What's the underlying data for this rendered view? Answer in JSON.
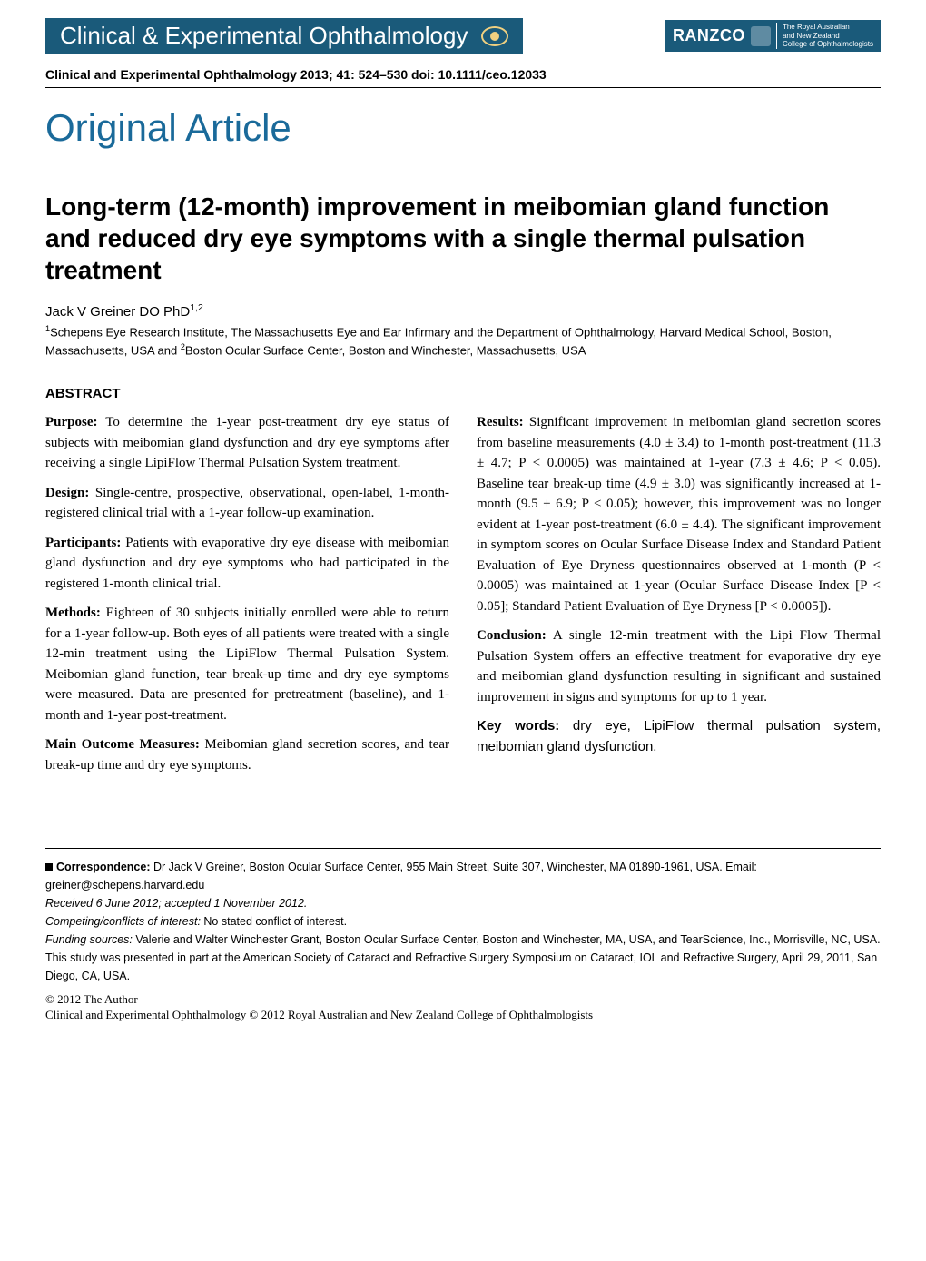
{
  "header": {
    "journal_banner": "Clinical & Experimental Ophthalmology",
    "ranzco_name": "RANZCO",
    "ranzco_line1": "The Royal Australian",
    "ranzco_line2": "and New Zealand",
    "ranzco_line3": "College of Ophthalmologists",
    "citation": "Clinical and Experimental Ophthalmology 2013; 41: 524–530 doi: 10.1111/ceo.12033"
  },
  "article_type": "Original Article",
  "title": "Long-term (12-month) improvement in meibomian gland function and reduced dry eye symptoms with a single thermal pulsation treatment",
  "author": "Jack V Greiner DO PhD",
  "author_sup": "1,2",
  "affiliation_pre": "1",
  "affiliation_text1": "Schepens Eye Research Institute, The Massachusetts Eye and Ear Infirmary and the Department of Ophthalmology, Harvard Medical School, Boston, Massachusetts, USA and ",
  "affiliation_sup2": "2",
  "affiliation_text2": "Boston Ocular Surface Center, Boston and Winchester, Massachusetts, USA",
  "abstract_heading": "Abstract",
  "abstract": {
    "purpose_label": "Purpose:",
    "purpose_text": " To determine the 1-year post-treatment dry eye status of subjects with meibomian gland dysfunction and dry eye symptoms after receiving a single LipiFlow Thermal Pulsation System treatment.",
    "design_label": "Design:",
    "design_text": " Single-centre, prospective, observational, open-label, 1-month-registered clinical trial with a 1-year follow-up examination.",
    "participants_label": "Participants:",
    "participants_text": " Patients with evaporative dry eye disease with meibomian gland dysfunction and dry eye symptoms who had participated in the registered 1-month clinical trial.",
    "methods_label": "Methods:",
    "methods_text": " Eighteen of 30 subjects initially enrolled were able to return for a 1-year follow-up. Both eyes of all patients were treated with a single 12-min treatment using the LipiFlow Thermal Pulsation System. Meibomian gland function, tear break-up time and dry eye symptoms were measured. Data are presented for pretreatment (baseline), and 1-month and 1-year post-treatment.",
    "outcomes_label": "Main Outcome Measures:",
    "outcomes_text": " Meibomian gland secretion scores, and tear break-up time and dry eye symptoms.",
    "results_label": "Results:",
    "results_text": " Significant improvement in meibomian gland secretion scores from baseline measurements (4.0 ± 3.4) to 1-month post-treatment (11.3 ± 4.7; P < 0.0005) was maintained at 1-year (7.3 ± 4.6; P < 0.05). Baseline tear break-up time (4.9 ± 3.0) was significantly increased at 1-month (9.5 ± 6.9; P < 0.05); however, this improvement was no longer evident at 1-year post-treatment (6.0 ± 4.4). The significant improvement in symptom scores on Ocular Surface Disease Index and Standard Patient Evaluation of Eye Dryness questionnaires observed at 1-month (P < 0.0005) was maintained at 1-year (Ocular Surface Disease Index [P < 0.05]; Standard Patient Evaluation of Eye Dryness [P < 0.0005]).",
    "conclusion_label": "Conclusion:",
    "conclusion_text": " A single 12-min treatment with the Lipi Flow Thermal Pulsation System offers an effective treatment for evaporative dry eye and meibomian gland dysfunction resulting in significant and sustained improvement in signs and symptoms for up to 1 year.",
    "keywords_label": "Key words:",
    "keywords_text": " dry eye, LipiFlow thermal pulsation system, meibomian gland dysfunction."
  },
  "footer": {
    "correspondence_label": "Correspondence:",
    "correspondence_text": " Dr Jack V Greiner, Boston Ocular Surface Center, 955 Main Street, Suite 307, Winchester, MA 01890-1961, USA. Email: greiner@schepens.harvard.edu",
    "received": "Received 6 June 2012; accepted 1 November 2012.",
    "competing_label": "Competing/conflicts of interest:",
    "competing_text": " No stated conflict of interest.",
    "funding_label": "Funding sources:",
    "funding_text": " Valerie and Walter Winchester Grant, Boston Ocular Surface Center, Boston and Winchester, MA, USA, and TearScience, Inc., Morrisville, NC, USA.",
    "presentation": "This study was presented in part at the American Society of Cataract and Refractive Surgery Symposium on Cataract, IOL and Refractive Surgery, April 29, 2011, San Diego, CA, USA.",
    "copyright1": "© 2012 The Author",
    "copyright2": "Clinical and Experimental Ophthalmology © 2012 Royal Australian and New Zealand College of Ophthalmologists"
  },
  "colors": {
    "banner_bg": "#1a5a7a",
    "accent": "#1a6a9a",
    "text": "#000000",
    "bg": "#ffffff"
  }
}
